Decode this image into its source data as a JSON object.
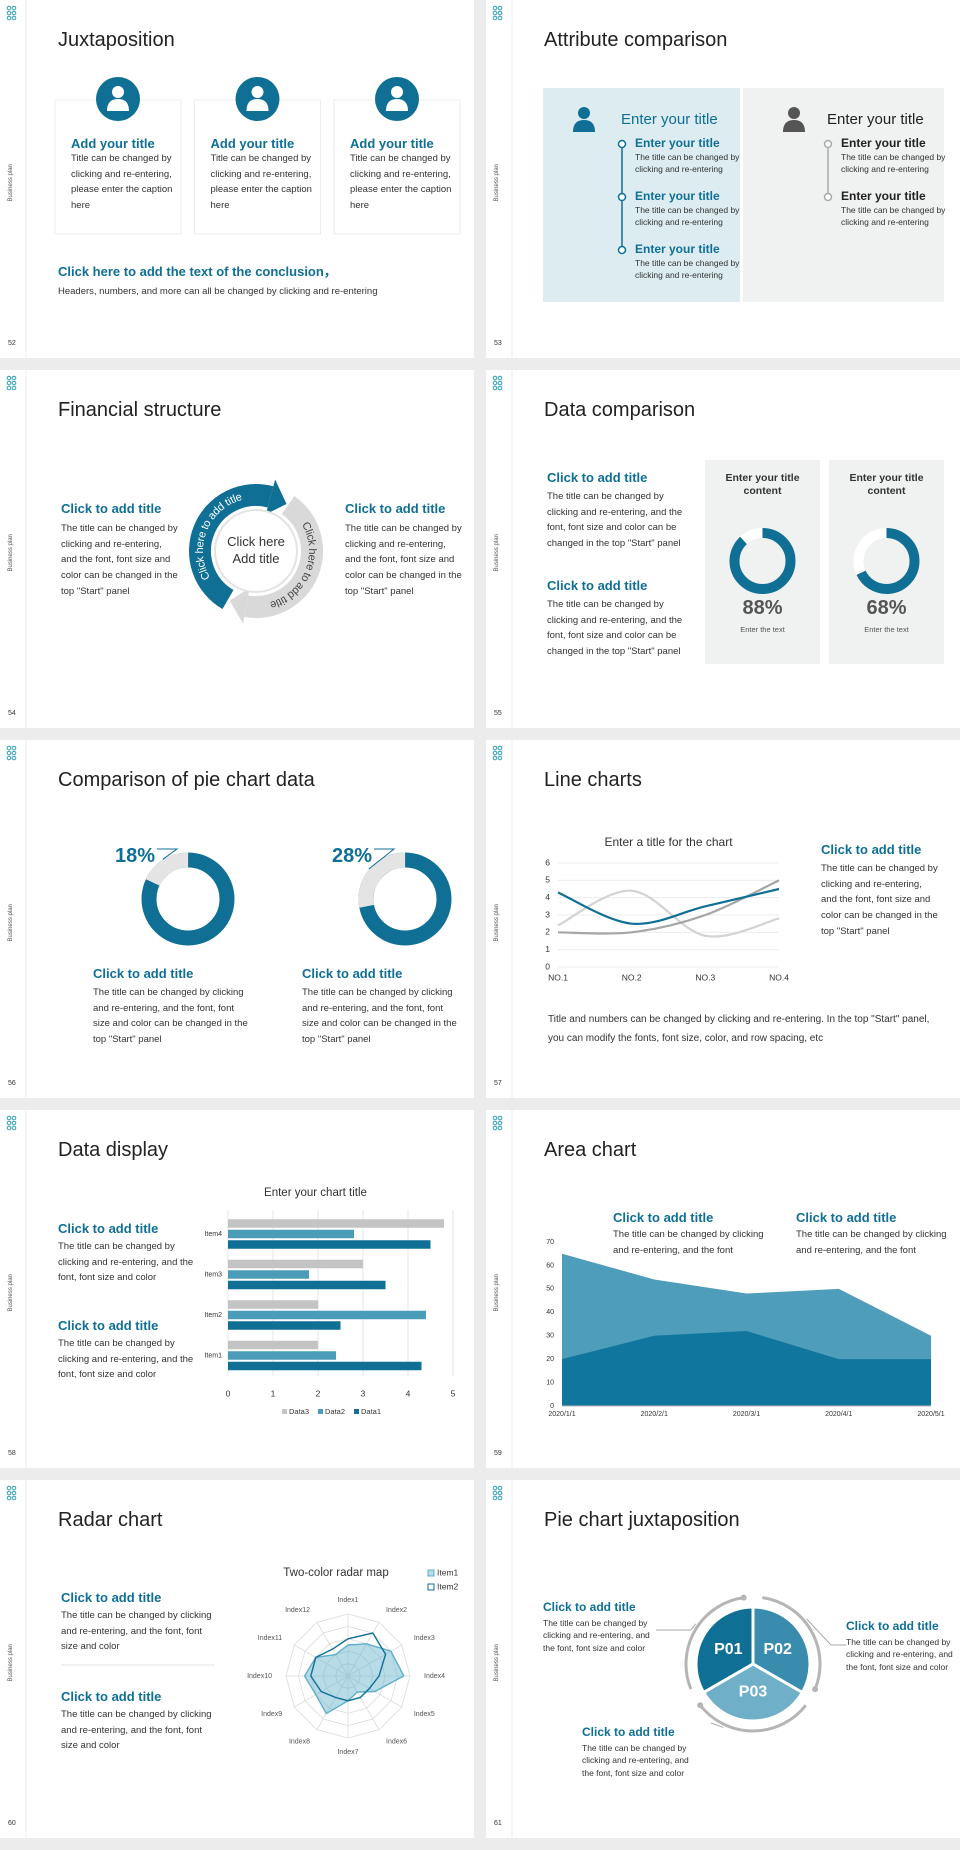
{
  "side_label": "Business plan",
  "slides": [
    {
      "number": "52",
      "title": "Juxtaposition",
      "cards": [
        {
          "title": "Add your title",
          "text": "Title can be changed by clicking and re-entering, please enter the caption here"
        },
        {
          "title": "Add your title",
          "text": "Title can be changed by clicking and re-entering, please enter the caption here"
        },
        {
          "title": "Add your title",
          "text": "Title can be changed by clicking and re-entering, please enter the caption here"
        }
      ],
      "conclusion_title": "Click here to add the text of the conclusion，",
      "conclusion_text": "Headers, numbers, and more can all be changed by clicking and re-entering"
    },
    {
      "number": "53",
      "title": "Attribute comparison",
      "panels": [
        {
          "heading": "Enter your title",
          "items": [
            {
              "title": "Enter your title",
              "text": "The title can be changed by clicking and re-entering"
            },
            {
              "title": "Enter your title",
              "text": "The title can be changed by clicking and re-entering"
            },
            {
              "title": "Enter your title",
              "text": "The title can be changed by clicking and re-entering"
            }
          ]
        },
        {
          "heading": "Enter your title",
          "items": [
            {
              "title": "Enter your title",
              "text": "The title can be changed by clicking and re-entering"
            },
            {
              "title": "Enter your title",
              "text": "The title can be changed by clicking and re-entering"
            }
          ]
        }
      ]
    },
    {
      "number": "54",
      "title": "Financial structure",
      "blocks": [
        {
          "title": "Click to add title",
          "text": "The title can be changed by clicking and re-entering, and the font, font size and color can be changed in the top \"Start\" panel"
        },
        {
          "title": "Click to add title",
          "text": "The title can be changed by clicking and re-entering, and the font, font size and color can be changed in the top \"Start\" panel"
        }
      ],
      "cycle": {
        "arrow_1": "Click here to add title",
        "arrow_2": "Click here to add title",
        "center": "Click here Add title"
      }
    },
    {
      "number": "55",
      "title": "Data comparison",
      "blocks": [
        {
          "title": "Click to add title",
          "text": "The title can be changed by clicking and re-entering, and the font, font size and color can be changed in the top \"Start\" panel"
        },
        {
          "title": "Click to add title",
          "text": "The title can be changed by clicking and re-entering, and the font, font size and color can be changed in the top \"Start\" panel"
        }
      ],
      "chart": {
        "type": "donut",
        "color": "#0f6f95",
        "series": [
          {
            "name": "Enter your title content",
            "value": 88,
            "value_label": "88%",
            "caption": "Enter the text"
          },
          {
            "name": "Enter your title content",
            "value": 68,
            "value_label": "68%",
            "caption": "Enter the text"
          }
        ]
      }
    },
    {
      "number": "56",
      "title": "Comparison of pie chart data",
      "blocks": [
        {
          "title": "Click to add title",
          "text": "The title can be changed by clicking and re-entering, and the font, font size and color can be changed in the top \"Start\" panel"
        },
        {
          "title": "Click to add title",
          "text": "The title can be changed by clicking and re-entering, and the font, font size and color can be changed in the top \"Start\" panel"
        }
      ],
      "chart": {
        "type": "ring",
        "color": "#0f6f95",
        "series": [
          {
            "value": 18,
            "value_label": "18%"
          },
          {
            "value": 28,
            "value_label": "28%"
          }
        ]
      }
    },
    {
      "number": "57",
      "title": "Line charts",
      "blocks": [
        {
          "title": "Click to add title",
          "text": "The title can be changed by clicking and re-entering, and the font, font size and color can be changed in the top \"Start\" panel"
        }
      ],
      "note": "Title and numbers can be changed by clicking and re-entering. In the top \"Start\" panel, you can modify the fonts, font size, color, and row spacing, etc",
      "chart": {
        "type": "line",
        "title": "Enter a title for the chart",
        "categories": [
          "NO.1",
          "NO.2",
          "NO.3",
          "NO.4"
        ],
        "ylim": [
          0,
          6
        ],
        "yticks": [
          0,
          1,
          2,
          3,
          4,
          5,
          6
        ],
        "grid": true,
        "series": [
          {
            "color": "#d3d3d3",
            "values": [
              2.4,
              4.4,
              1.8,
              2.8
            ]
          },
          {
            "color": "#a6a6a6",
            "values": [
              2.0,
              2.0,
              3.0,
              5.0
            ]
          },
          {
            "color": "#0f6f95",
            "values": [
              4.3,
              2.5,
              3.5,
              4.5
            ]
          }
        ]
      }
    },
    {
      "number": "58",
      "title": "Data display",
      "blocks": [
        {
          "title": "Click to add title",
          "text": "The title can be changed by clicking and re-entering, and the font, font size and color"
        },
        {
          "title": "Click to add title",
          "text": "The title can be changed by clicking and re-entering, and the font, font size and color"
        }
      ],
      "chart": {
        "type": "hbar",
        "title": "Enter your chart title",
        "categories": [
          "Item1",
          "Item2",
          "Item3",
          "Item4"
        ],
        "xlim": [
          0,
          5
        ],
        "xticks": [
          0,
          1,
          2,
          3,
          4,
          5
        ],
        "grid": true,
        "series": [
          {
            "name": "Data3",
            "color": "#c4c4c4",
            "values": [
              2.0,
              2.0,
              3.0,
              4.8
            ]
          },
          {
            "name": "Data2",
            "color": "#4b9cb9",
            "values": [
              2.4,
              4.4,
              1.8,
              2.8
            ]
          },
          {
            "name": "Data1",
            "color": "#0f6f95",
            "values": [
              4.3,
              2.5,
              3.5,
              4.5
            ]
          }
        ]
      }
    },
    {
      "number": "59",
      "title": "Area chart",
      "blocks": [
        {
          "title": "Click to add title",
          "text": "The title can be changed by clicking and re-entering, and the font"
        },
        {
          "title": "Click to add title",
          "text": "The title can be changed by clicking and re-entering, and the font"
        }
      ],
      "chart": {
        "type": "area",
        "x": [
          "2020/1/1",
          "2020/2/1",
          "2020/3/1",
          "2020/4/1",
          "2020/5/1"
        ],
        "ylim": [
          0,
          70
        ],
        "yticks": [
          0,
          10,
          20,
          30,
          40,
          50,
          60,
          70
        ],
        "series": [
          {
            "color": "#4e9dba",
            "values": [
              65,
              54,
              48,
              50,
              30
            ]
          },
          {
            "color": "#11769e",
            "values": [
              20,
              30,
              32,
              20,
              20
            ]
          }
        ]
      }
    },
    {
      "number": "60",
      "title": "Radar chart",
      "blocks": [
        {
          "title": "Click to add title",
          "text": "The title can be changed by clicking and re-entering, and the font, font size and color"
        },
        {
          "title": "Click to add title",
          "text": "The title can be changed by clicking and re-entering, and the font, font size and color"
        }
      ],
      "chart": {
        "type": "radar",
        "title": "Two-color radar map",
        "categories": [
          "Index1",
          "Index2",
          "Index3",
          "Index4",
          "Index5",
          "Index6",
          "Index7",
          "Index8",
          "Index9",
          "Index10",
          "Index11",
          "Index12"
        ],
        "rlim": [
          0,
          5
        ],
        "series": [
          {
            "name": "Item1",
            "color": "#5fb0c9",
            "values": [
              2.5,
              3,
              4,
              4.5,
              2.5,
              1.5,
              2,
              3.5,
              3,
              3.5,
              3,
              2
            ]
          },
          {
            "name": "Item2",
            "color": "#0f6f95",
            "values": [
              3,
              4,
              3.5,
              2.5,
              2,
              2,
              2,
              2,
              2.5,
              3,
              3,
              2.5
            ]
          }
        ]
      }
    },
    {
      "number": "61",
      "title": "Pie chart juxtaposition",
      "segments": [
        "P01",
        "P02",
        "P03"
      ],
      "blocks": [
        {
          "title": "Click to add title",
          "text": "The title can be changed by clicking and re-entering, and the font, font size and color"
        },
        {
          "title": "Click to add title",
          "text": "The title can be changed by clicking and re-entering, and the font, font size and color"
        },
        {
          "title": "Click to add title",
          "text": "The title can be changed by clicking and re-entering, and the font, font size and color"
        }
      ]
    }
  ]
}
